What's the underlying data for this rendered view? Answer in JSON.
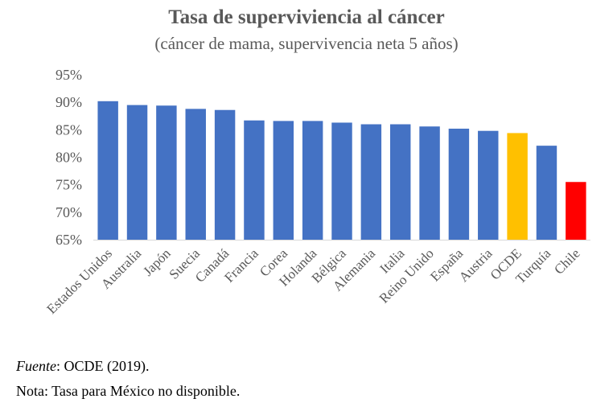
{
  "chart_data": {
    "type": "bar",
    "title": "Tasa de superviviencia al cáncer",
    "subtitle": "(cáncer de mama, supervivencia neta 5 años)",
    "categories": [
      "Estados Unidos",
      "Australia",
      "Japón",
      "Suecia",
      "Canadá",
      "Francia",
      "Corea",
      "Holanda",
      "Bélgica",
      "Alemania",
      "Italia",
      "Reino Unido",
      "España",
      "Austria",
      "OCDE",
      "Turquía",
      "Chile"
    ],
    "values": [
      90.2,
      89.5,
      89.4,
      88.8,
      88.6,
      86.7,
      86.6,
      86.6,
      86.3,
      86.0,
      86.0,
      85.6,
      85.2,
      84.8,
      84.4,
      82.1,
      75.5
    ],
    "colors": [
      "#4472C4",
      "#4472C4",
      "#4472C4",
      "#4472C4",
      "#4472C4",
      "#4472C4",
      "#4472C4",
      "#4472C4",
      "#4472C4",
      "#4472C4",
      "#4472C4",
      "#4472C4",
      "#4472C4",
      "#4472C4",
      "#FFC000",
      "#4472C4",
      "#FF0000"
    ],
    "ylim": [
      65,
      95
    ],
    "yticks": [
      65,
      70,
      75,
      80,
      85,
      90,
      95
    ],
    "ytick_labels": [
      "65%",
      "70%",
      "75%",
      "80%",
      "85%",
      "90%",
      "95%"
    ],
    "grid": false,
    "xlabel": "",
    "ylabel": ""
  },
  "footer": {
    "source_label": "Fuente",
    "source_text": ": OCDE (2019).",
    "note": "Nota: Tasa para México no disponible."
  }
}
